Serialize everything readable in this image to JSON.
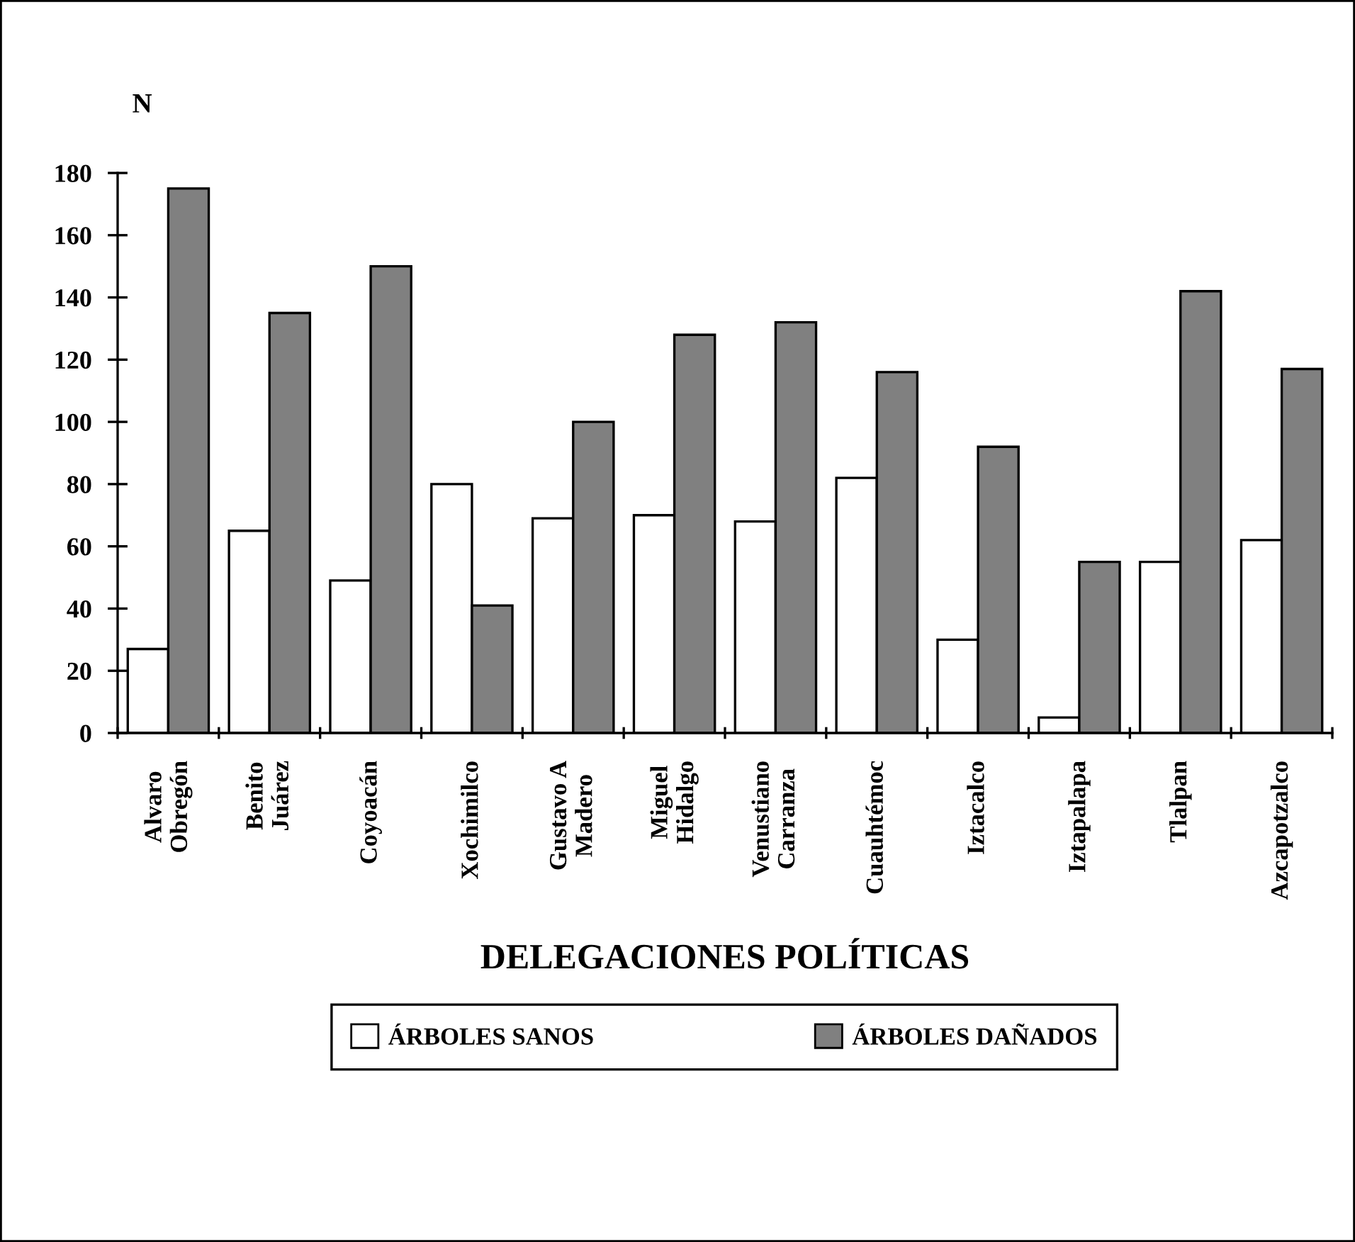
{
  "chart_data": {
    "type": "bar",
    "ylabel": "N",
    "xlabel": "DELEGACIONES POLÍTICAS",
    "categories": [
      "Alvaro\nObregón",
      "Benito\nJuárez",
      "Coyoacán",
      "Xochimilco",
      "Gustavo A\nMadero",
      "Miguel\nHidalgo",
      "Venustiano\nCarranza",
      "Cuauhtémoc",
      "Iztacalco",
      "Iztapalapa",
      "Tlalpan",
      "Azcapotzalco"
    ],
    "series": [
      {
        "name": "ÁRBOLES SANOS",
        "color": "#ffffff",
        "values": [
          27,
          65,
          49,
          80,
          69,
          70,
          68,
          82,
          30,
          5,
          55,
          62
        ]
      },
      {
        "name": "ÁRBOLES DAÑADOS",
        "color": "#808080",
        "values": [
          175,
          135,
          150,
          41,
          100,
          128,
          132,
          116,
          92,
          55,
          142,
          117
        ]
      }
    ],
    "ylim": [
      0,
      180
    ],
    "yticks": [
      0,
      20,
      40,
      60,
      80,
      100,
      120,
      140,
      160,
      180
    ],
    "legend": "bottom"
  }
}
